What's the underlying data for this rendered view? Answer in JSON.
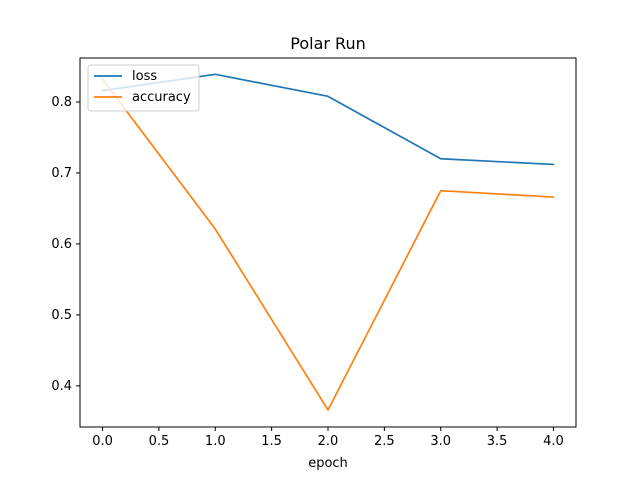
{
  "chart_data": {
    "type": "line",
    "title": "Polar Run",
    "xlabel": "epoch",
    "ylabel": "",
    "x": [
      0,
      1,
      2,
      3,
      4
    ],
    "xlim": [
      -0.2,
      4.2
    ],
    "ylim": [
      0.342,
      0.862
    ],
    "xticks": [
      0.0,
      0.5,
      1.0,
      1.5,
      2.0,
      2.5,
      3.0,
      3.5,
      4.0
    ],
    "xtick_labels": [
      "0.0",
      "0.5",
      "1.0",
      "1.5",
      "2.0",
      "2.5",
      "3.0",
      "3.5",
      "4.0"
    ],
    "yticks": [
      0.4,
      0.5,
      0.6,
      0.7,
      0.8
    ],
    "ytick_labels": [
      "0.4",
      "0.5",
      "0.6",
      "0.7",
      "0.8"
    ],
    "grid": false,
    "legend_position": "top-left",
    "series": [
      {
        "name": "loss",
        "color": "#1f77b4",
        "values": [
          0.816,
          0.839,
          0.808,
          0.72,
          0.712
        ]
      },
      {
        "name": "accuracy",
        "color": "#ff7f0e",
        "values": [
          0.832,
          0.621,
          0.366,
          0.675,
          0.666
        ]
      }
    ]
  }
}
